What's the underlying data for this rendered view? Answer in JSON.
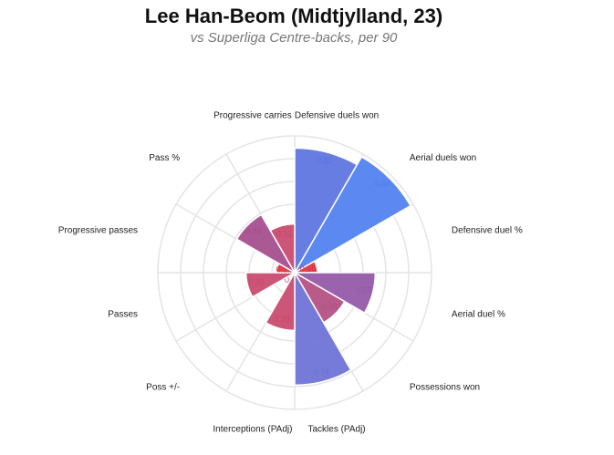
{
  "chart_data": {
    "type": "polar_bar",
    "title": "Lee Han-Beom (Midtjylland, 23)",
    "subtitle": "vs Superliga Centre-backs, per 90",
    "categories": [
      "Defensive duels won",
      "Aerial duels won",
      "Defensive duel %",
      "Aerial duel %",
      "Possessions won",
      "Tackles (PAdj)",
      "Interceptions (PAdj)",
      "Poss +/-",
      "Passes",
      "Progressive passes",
      "Pass %",
      "Progressive carries"
    ],
    "values": [
      0.82,
      0.88,
      0.15,
      0.53,
      0.38,
      0.74,
      0.38,
      0,
      0.32,
      0.12,
      0.44,
      0.32
    ],
    "colors": [
      "#5a72e0",
      "#4d7ff0",
      "#e0303f",
      "#9256a6",
      "#b24d80",
      "#6a70d6",
      "#c8476c",
      "#c8476c",
      "#c8476c",
      "#e0303f",
      "#a44b8c",
      "#c8476c"
    ],
    "rlim": [
      0,
      0.9
    ],
    "rticks": [
      0.15,
      0.3,
      0.45,
      0.6,
      0.75,
      0.9
    ],
    "grid": true
  }
}
